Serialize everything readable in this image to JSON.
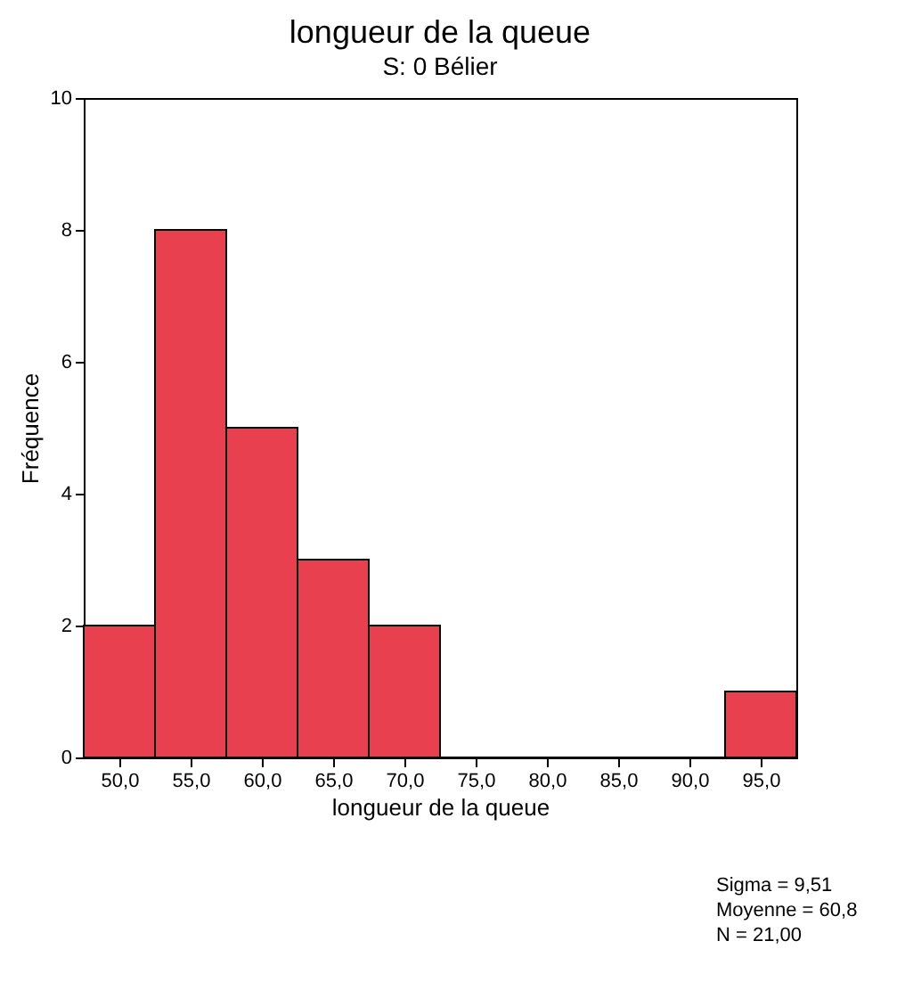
{
  "chart_data": {
    "type": "histogram",
    "title": "longueur de la queue",
    "subtitle": "S: 0      Bélier",
    "xlabel": "longueur de la queue",
    "ylabel": "Fréquence",
    "bins": [
      47.5,
      52.5,
      57.5,
      62.5,
      67.5,
      72.5,
      77.5,
      82.5,
      87.5,
      92.5,
      97.5
    ],
    "values": [
      2,
      8,
      5,
      3,
      2,
      0,
      0,
      0,
      0,
      1
    ],
    "color": "#e8404f",
    "xlim": [
      47.5,
      97.5
    ],
    "xticks": [
      {
        "value": 50,
        "label": "50,0"
      },
      {
        "value": 55,
        "label": "55,0"
      },
      {
        "value": 60,
        "label": "60,0"
      },
      {
        "value": 65,
        "label": "65,0"
      },
      {
        "value": 70,
        "label": "70,0"
      },
      {
        "value": 75,
        "label": "75,0"
      },
      {
        "value": 80,
        "label": "80,0"
      },
      {
        "value": 85,
        "label": "85,0"
      },
      {
        "value": 90,
        "label": "90,0"
      },
      {
        "value": 95,
        "label": "95,0"
      }
    ],
    "ylim": [
      0,
      10
    ],
    "yticks": [
      0,
      2,
      4,
      6,
      8,
      10
    ],
    "grid": false,
    "annotations": [
      "Sigma = 9,51",
      "Moyenne = 60,8",
      "N = 21,00"
    ]
  }
}
